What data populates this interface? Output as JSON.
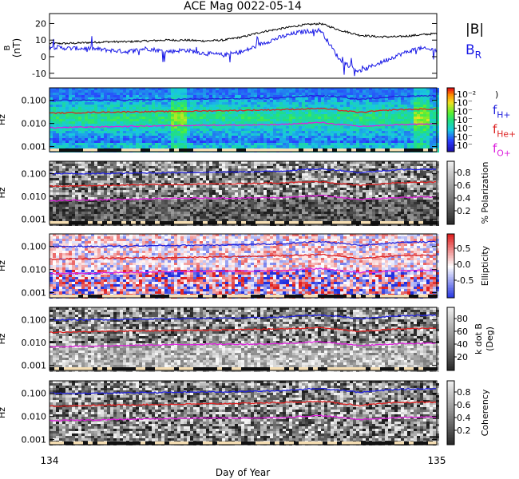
{
  "chart_data": [
    {
      "type": "line",
      "title": "ACE Mag 0022-05-14",
      "ylabel": "B\n(nT)",
      "yticks": [
        "20",
        "10",
        "0",
        "-10"
      ],
      "ylim": [
        -13,
        26
      ],
      "series": [
        {
          "name": "|B|",
          "color": "#000000",
          "x": [
            134.0,
            134.05,
            134.1,
            134.15,
            134.2,
            134.25,
            134.3,
            134.35,
            134.4,
            134.45,
            134.5,
            134.55,
            134.6,
            134.65,
            134.7,
            134.75,
            134.8,
            134.85,
            134.9,
            134.95,
            135.0
          ],
          "values": [
            8,
            8,
            8.5,
            9,
            9,
            9.5,
            10,
            10,
            9.5,
            10,
            12,
            15,
            17,
            19,
            20,
            16,
            13,
            12,
            12,
            13,
            14
          ]
        },
        {
          "name": "B",
          "sub": "R",
          "color": "#1a1ae6",
          "x": [
            134.0,
            134.05,
            134.1,
            134.15,
            134.2,
            134.25,
            134.3,
            134.35,
            134.4,
            134.45,
            134.5,
            134.55,
            134.6,
            134.65,
            134.7,
            134.75,
            134.8,
            134.85,
            134.9,
            134.95,
            135.0
          ],
          "values": [
            6,
            5,
            5,
            4,
            3,
            5,
            3,
            4,
            2,
            1,
            3,
            8,
            12,
            15,
            16,
            -2,
            -9,
            -4,
            1,
            5,
            4
          ]
        }
      ]
    },
    {
      "type": "heatmap",
      "ylabel": "Hz",
      "yticks": [
        "0.100",
        "0.010",
        "0.001"
      ],
      "colorbar": {
        "ticks": [
          "10⁻²",
          "10⁻",
          "10⁻",
          "10⁻",
          "10⁻",
          "10⁻",
          "10⁻"
        ],
        "label": ")"
      },
      "lines": [
        {
          "name": "f",
          "sub": "H+",
          "color": "#2222dd"
        },
        {
          "name": "f",
          "sub": "He+",
          "color": "#dd2222"
        },
        {
          "name": "f",
          "sub": "O+",
          "color": "#dd22dd"
        }
      ]
    },
    {
      "type": "heatmap",
      "ylabel": "Hz",
      "yticks": [
        "0.100",
        "0.010",
        "0.001"
      ],
      "colorbar": {
        "ticks": [
          "0.8",
          "0.6",
          "0.4",
          "0.2"
        ],
        "label": "% Polarization"
      }
    },
    {
      "type": "heatmap",
      "ylabel": "Hz",
      "yticks": [
        "0.100",
        "0.010",
        "0.001"
      ],
      "colorbar": {
        "ticks": [
          "0.5",
          "0.0",
          "-0.5"
        ],
        "label": "Ellipticity"
      }
    },
    {
      "type": "heatmap",
      "ylabel": "Hz",
      "yticks": [
        "0.100",
        "0.010",
        "0.001"
      ],
      "colorbar": {
        "ticks": [
          "80",
          "60",
          "40",
          "20"
        ],
        "label": "k dot B\n(Deg)"
      }
    },
    {
      "type": "heatmap",
      "ylabel": "Hz",
      "yticks": [
        "0.100",
        "0.010",
        "0.001"
      ],
      "colorbar": {
        "ticks": [
          "0.8",
          "0.6",
          "0.4",
          "0.2"
        ],
        "label": "Coherency"
      }
    }
  ],
  "x_axis": {
    "label": "Day of Year",
    "ticks": [
      "134",
      "135"
    ],
    "xlim": [
      134.0,
      135.0
    ]
  },
  "frequency_lines": {
    "x": [
      134.0,
      134.1,
      134.2,
      134.3,
      134.4,
      134.5,
      134.6,
      134.65,
      134.7,
      134.75,
      134.8,
      134.85,
      134.9,
      135.0
    ],
    "f_Hplus": [
      0.1,
      0.1,
      0.105,
      0.11,
      0.115,
      0.12,
      0.13,
      0.15,
      0.16,
      0.14,
      0.11,
      0.13,
      0.15,
      0.16
    ],
    "f_Heplus": [
      0.028,
      0.03,
      0.032,
      0.033,
      0.035,
      0.037,
      0.04,
      0.042,
      0.045,
      0.037,
      0.03,
      0.035,
      0.04,
      0.042
    ],
    "f_Oplus": [
      0.0065,
      0.007,
      0.0075,
      0.008,
      0.0085,
      0.0085,
      0.009,
      0.01,
      0.011,
      0.009,
      0.0075,
      0.008,
      0.009,
      0.0095
    ]
  }
}
